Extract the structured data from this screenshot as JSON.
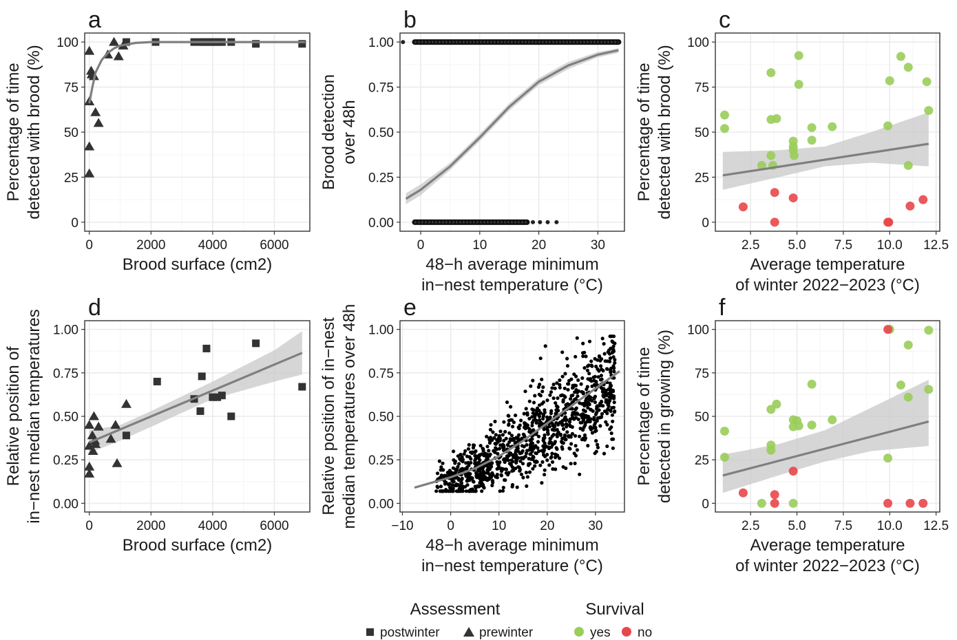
{
  "colors": {
    "dark": "#333333",
    "yes": "#9ACD5A",
    "no": "#E8474A",
    "fit_line": "#7f7f7f",
    "ribbon": "#c8c8c8",
    "grid_major": "#ebebeb",
    "grid_minor": "#f5f5f5"
  },
  "legend": {
    "assessment_title": "Assessment",
    "assessment_items": [
      "postwinter",
      "prewinter"
    ],
    "survival_title": "Survival",
    "survival_items": [
      "yes",
      "no"
    ]
  },
  "chart_data": [
    {
      "id": "a",
      "panel_label": "a",
      "type": "scatter",
      "xlabel": [
        "Brood surface (cm2)"
      ],
      "ylabel": [
        "Percentage of time",
        "detected with brood (%)"
      ],
      "xlim": [
        -150,
        7150
      ],
      "ylim": [
        -5,
        105
      ],
      "xticks": [
        0,
        2000,
        4000,
        6000
      ],
      "yticks": [
        0,
        25,
        50,
        75,
        100
      ],
      "series": [
        {
          "name": "prewinter",
          "shape": "triangle",
          "points": [
            [
              0,
              95
            ],
            [
              0,
              67
            ],
            [
              0,
              42
            ],
            [
              0,
              27
            ],
            [
              60,
              84
            ],
            [
              80,
              82
            ],
            [
              150,
              81
            ],
            [
              200,
              61
            ],
            [
              300,
              55
            ],
            [
              600,
              93
            ],
            [
              800,
              100
            ],
            [
              950,
              92
            ],
            [
              1100,
              98
            ]
          ]
        },
        {
          "name": "postwinter",
          "shape": "square",
          "points": [
            [
              1200,
              100
            ],
            [
              2150,
              100
            ],
            [
              3400,
              100
            ],
            [
              3600,
              100
            ],
            [
              3700,
              100
            ],
            [
              3800,
              100
            ],
            [
              3900,
              100
            ],
            [
              4000,
              100
            ],
            [
              4100,
              100
            ],
            [
              4200,
              100
            ],
            [
              4300,
              100
            ],
            [
              4600,
              100
            ],
            [
              5400,
              99
            ],
            [
              6900,
              99
            ]
          ]
        }
      ],
      "fit": {
        "type": "curve",
        "line": [
          [
            0,
            66
          ],
          [
            100,
            75
          ],
          [
            200,
            83
          ],
          [
            400,
            90
          ],
          [
            600,
            94
          ],
          [
            800,
            96.5
          ],
          [
            1000,
            98
          ],
          [
            1500,
            99.5
          ],
          [
            2000,
            100
          ],
          [
            7000,
            100
          ]
        ]
      }
    },
    {
      "id": "b",
      "panel_label": "b",
      "type": "scatter",
      "xlabel": [
        "48−h average minimum",
        "in−nest temperature (°C)"
      ],
      "ylabel": [
        "Brood detection",
        "over 48h"
      ],
      "xlim": [
        -3.5,
        34.5
      ],
      "ylim": [
        -0.05,
        1.05
      ],
      "xticks": [
        0,
        10,
        20,
        30
      ],
      "yticks": [
        0.0,
        0.25,
        0.5,
        0.75,
        1.0
      ],
      "ytick_labels": [
        "0.00",
        "0.25",
        "0.50",
        "0.75",
        "1.00"
      ],
      "strips": [
        {
          "y": 1.0,
          "x_from": -1.0,
          "x_to": 33.5,
          "extra_x": [
            -3.0
          ]
        },
        {
          "y": 0.0,
          "x_from": -1.0,
          "x_to": 18.0,
          "extra_x": [
            19.0,
            20.2,
            21.5,
            23.0
          ]
        }
      ],
      "fit": {
        "type": "logistic",
        "line": [
          [
            -2.5,
            0.13
          ],
          [
            0,
            0.18
          ],
          [
            5,
            0.31
          ],
          [
            10,
            0.47
          ],
          [
            15,
            0.64
          ],
          [
            20,
            0.78
          ],
          [
            25,
            0.87
          ],
          [
            30,
            0.93
          ],
          [
            33.5,
            0.955
          ]
        ],
        "upper": [
          [
            -2.5,
            0.16
          ],
          [
            0,
            0.21
          ],
          [
            5,
            0.33
          ],
          [
            10,
            0.49
          ],
          [
            15,
            0.66
          ],
          [
            20,
            0.8
          ],
          [
            25,
            0.89
          ],
          [
            30,
            0.945
          ],
          [
            33.5,
            0.965
          ]
        ],
        "lower": [
          [
            -2.5,
            0.1
          ],
          [
            0,
            0.15
          ],
          [
            5,
            0.29
          ],
          [
            10,
            0.45
          ],
          [
            15,
            0.62
          ],
          [
            20,
            0.76
          ],
          [
            25,
            0.85
          ],
          [
            30,
            0.915
          ],
          [
            33.5,
            0.94
          ]
        ]
      }
    },
    {
      "id": "c",
      "panel_label": "c",
      "type": "scatter",
      "xlabel": [
        "Average temperature",
        "of winter 2022−2023 (°C)"
      ],
      "ylabel": [
        "Percentage of time",
        "detected with brood (%)"
      ],
      "xlim": [
        0.6,
        12.7
      ],
      "ylim": [
        -5,
        105
      ],
      "xticks": [
        2.5,
        5.0,
        7.5,
        10.0,
        12.5
      ],
      "xtick_labels": [
        "2.5",
        "5.0",
        "7.5",
        "10.0",
        "12.5"
      ],
      "yticks": [
        0,
        25,
        50,
        75,
        100
      ],
      "series": [
        {
          "name": "yes",
          "points": [
            [
              1.1,
              59.5
            ],
            [
              1.1,
              52
            ],
            [
              3.1,
              31.5
            ],
            [
              3.6,
              83
            ],
            [
              3.6,
              57
            ],
            [
              3.6,
              37
            ],
            [
              3.7,
              31.5
            ],
            [
              3.9,
              57.5
            ],
            [
              4.8,
              45
            ],
            [
              4.8,
              42
            ],
            [
              4.8,
              40
            ],
            [
              4.85,
              37
            ],
            [
              5.1,
              92.5
            ],
            [
              5.1,
              76.5
            ],
            [
              5.8,
              52.5
            ],
            [
              5.8,
              45.5
            ],
            [
              6.9,
              53
            ],
            [
              9.9,
              53.5
            ],
            [
              10.0,
              78.5
            ],
            [
              10.6,
              92
            ],
            [
              11.0,
              86
            ],
            [
              11.0,
              31.5
            ],
            [
              12.0,
              78
            ],
            [
              12.1,
              62
            ]
          ]
        },
        {
          "name": "no",
          "points": [
            [
              2.1,
              8.5
            ],
            [
              3.8,
              16.5
            ],
            [
              3.8,
              0
            ],
            [
              4.8,
              13.5
            ],
            [
              9.9,
              0
            ],
            [
              9.95,
              0
            ],
            [
              11.1,
              9
            ],
            [
              11.8,
              12.5
            ]
          ]
        }
      ],
      "fit": {
        "type": "linear",
        "line": [
          [
            1.0,
            26
          ],
          [
            12.1,
            43.5
          ]
        ],
        "upper": [
          [
            1.0,
            39
          ],
          [
            4.0,
            40
          ],
          [
            6.5,
            42
          ],
          [
            9.0,
            50
          ],
          [
            12.1,
            61
          ]
        ],
        "lower": [
          [
            1.0,
            18
          ],
          [
            4.0,
            25
          ],
          [
            6.5,
            31
          ],
          [
            9.0,
            33
          ],
          [
            12.1,
            31
          ]
        ]
      }
    },
    {
      "id": "d",
      "panel_label": "d",
      "type": "scatter",
      "xlabel": [
        "Brood surface (cm2)"
      ],
      "ylabel": [
        "Relative position of",
        "in−nest median temperatures"
      ],
      "xlim": [
        -150,
        7150
      ],
      "ylim": [
        -0.05,
        1.05
      ],
      "xticks": [
        0,
        2000,
        4000,
        6000
      ],
      "yticks": [
        0.0,
        0.25,
        0.5,
        0.75,
        1.0
      ],
      "ytick_labels": [
        "0.00",
        "0.25",
        "0.50",
        "0.75",
        "1.00"
      ],
      "series": [
        {
          "name": "prewinter",
          "shape": "triangle",
          "points": [
            [
              0,
              0.45
            ],
            [
              0,
              0.33
            ],
            [
              0,
              0.21
            ],
            [
              0,
              0.17
            ],
            [
              100,
              0.39
            ],
            [
              120,
              0.3
            ],
            [
              150,
              0.5
            ],
            [
              180,
              0.36
            ],
            [
              200,
              0.34
            ],
            [
              300,
              0.44
            ],
            [
              700,
              0.37
            ],
            [
              850,
              0.45
            ],
            [
              900,
              0.23
            ],
            [
              1200,
              0.57
            ]
          ]
        },
        {
          "name": "postwinter",
          "shape": "square",
          "points": [
            [
              1200,
              0.39
            ],
            [
              2200,
              0.7
            ],
            [
              3400,
              0.6
            ],
            [
              3600,
              0.53
            ],
            [
              3650,
              0.73
            ],
            [
              3800,
              0.89
            ],
            [
              4000,
              0.61
            ],
            [
              4150,
              0.61
            ],
            [
              4300,
              0.62
            ],
            [
              4600,
              0.5
            ],
            [
              5400,
              0.92
            ],
            [
              6900,
              0.67
            ]
          ]
        }
      ],
      "fit": {
        "type": "linear",
        "line": [
          [
            0,
            0.35
          ],
          [
            6900,
            0.865
          ]
        ],
        "upper": [
          [
            0,
            0.42
          ],
          [
            1000,
            0.45
          ],
          [
            2000,
            0.53
          ],
          [
            4000,
            0.7
          ],
          [
            6000,
            0.88
          ],
          [
            6900,
            0.99
          ]
        ],
        "lower": [
          [
            0,
            0.29
          ],
          [
            1000,
            0.36
          ],
          [
            2000,
            0.44
          ],
          [
            4000,
            0.6
          ],
          [
            6000,
            0.7
          ],
          [
            6900,
            0.74
          ]
        ]
      }
    },
    {
      "id": "e",
      "panel_label": "e",
      "type": "scatter",
      "xlabel": [
        "48−h average minimum",
        "in−nest temperature (°C)"
      ],
      "ylabel": [
        "Relative position of in−nest",
        "median temperatures over 48h"
      ],
      "xlim": [
        -10.5,
        36
      ],
      "ylim": [
        -0.05,
        1.05
      ],
      "xticks": [
        -10,
        0,
        10,
        20,
        30
      ],
      "yticks": [
        0.0,
        0.25,
        0.5,
        0.75,
        1.0
      ],
      "ytick_labels": [
        "0.00",
        "0.25",
        "0.50",
        "0.75",
        "1.00"
      ],
      "cloud": {
        "count": 1100,
        "x_range": [
          -3,
          34
        ],
        "y_range": [
          0.0,
          0.96
        ]
      },
      "fit": {
        "type": "logistic",
        "line": [
          [
            -7.5,
            0.09
          ],
          [
            0,
            0.15
          ],
          [
            5,
            0.2
          ],
          [
            10,
            0.27
          ],
          [
            15,
            0.36
          ],
          [
            20,
            0.46
          ],
          [
            25,
            0.56
          ],
          [
            30,
            0.66
          ],
          [
            35,
            0.76
          ]
        ]
      }
    },
    {
      "id": "f",
      "panel_label": "f",
      "type": "scatter",
      "xlabel": [
        "Average temperature",
        "of winter 2022−2023 (°C)"
      ],
      "ylabel": [
        "Percentage of time",
        "detected in growing (%)"
      ],
      "xlim": [
        0.6,
        12.7
      ],
      "ylim": [
        -5,
        105
      ],
      "xticks": [
        2.5,
        5.0,
        7.5,
        10.0,
        12.5
      ],
      "xtick_labels": [
        "2.5",
        "5.0",
        "7.5",
        "10.0",
        "12.5"
      ],
      "yticks": [
        0,
        25,
        50,
        75,
        100
      ],
      "series": [
        {
          "name": "yes",
          "points": [
            [
              1.1,
              41.5
            ],
            [
              1.1,
              26.5
            ],
            [
              3.1,
              0
            ],
            [
              3.6,
              54
            ],
            [
              3.6,
              33.5
            ],
            [
              3.6,
              30.5
            ],
            [
              3.9,
              57
            ],
            [
              4.8,
              0
            ],
            [
              4.8,
              48
            ],
            [
              4.8,
              44
            ],
            [
              5.0,
              47.5
            ],
            [
              5.1,
              44.5
            ],
            [
              5.8,
              68.5
            ],
            [
              5.8,
              45
            ],
            [
              6.9,
              48
            ],
            [
              9.9,
              26
            ],
            [
              10.0,
              100
            ],
            [
              10.6,
              68
            ],
            [
              11.0,
              61
            ],
            [
              11.0,
              91
            ],
            [
              12.1,
              99.5
            ],
            [
              12.1,
              65.5
            ]
          ]
        },
        {
          "name": "no",
          "points": [
            [
              2.1,
              6
            ],
            [
              3.8,
              5
            ],
            [
              3.8,
              0
            ],
            [
              4.8,
              18.5
            ],
            [
              9.9,
              100
            ],
            [
              9.9,
              0
            ],
            [
              11.1,
              0
            ],
            [
              11.8,
              0
            ]
          ]
        }
      ],
      "fit": {
        "type": "linear",
        "line": [
          [
            1.0,
            16
          ],
          [
            12.1,
            47
          ]
        ],
        "upper": [
          [
            1.0,
            28
          ],
          [
            4.0,
            34
          ],
          [
            6.5,
            42
          ],
          [
            9.0,
            55
          ],
          [
            12.1,
            71
          ]
        ],
        "lower": [
          [
            1.0,
            6
          ],
          [
            4.0,
            16
          ],
          [
            6.5,
            24
          ],
          [
            9.0,
            30
          ],
          [
            12.1,
            33
          ]
        ]
      }
    }
  ]
}
